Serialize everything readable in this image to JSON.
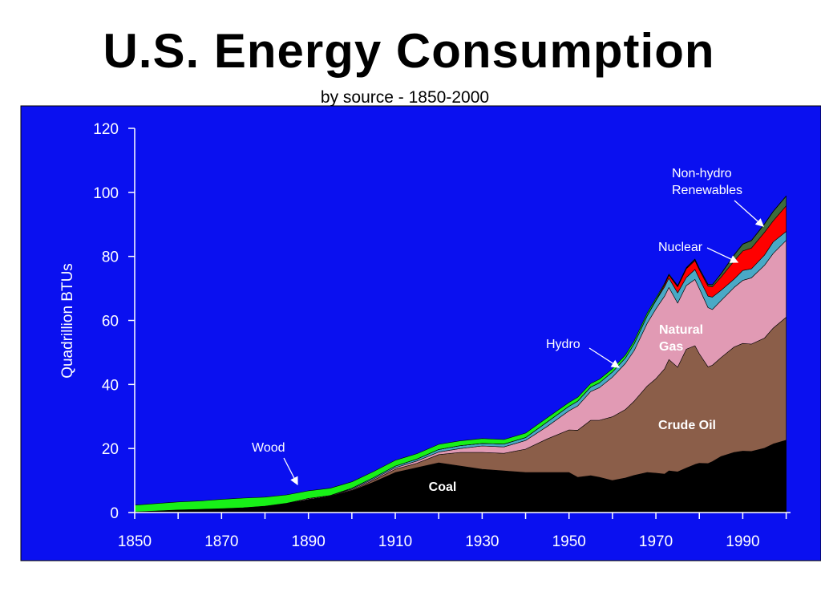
{
  "title": "U.S. Energy Consumption",
  "subtitle": "by source - 1850-2000",
  "colors": {
    "panel": "#0a10f0",
    "coal": "#000000",
    "crude_oil": "#8b5e49",
    "natural_gas": "#e19ab4",
    "hydro": "#49a9c6",
    "nuclear": "#ff0000",
    "renewables": "#3e6c3b",
    "wood": "#18f018"
  },
  "chart_data": {
    "type": "area",
    "stacked": true,
    "title": "U.S. Energy Consumption",
    "subtitle": "by source - 1850-2000",
    "xlabel": "",
    "ylabel": "Quadrillion BTUs",
    "xlim": [
      1850,
      2001
    ],
    "ylim": [
      0,
      120
    ],
    "x_ticks": [
      1850,
      1870,
      1890,
      1910,
      1930,
      1950,
      1970,
      1990
    ],
    "y_ticks": [
      0,
      20,
      40,
      60,
      80,
      100,
      120
    ],
    "grid": false,
    "legend": "inline labels",
    "x": [
      1850,
      1855,
      1860,
      1865,
      1870,
      1875,
      1880,
      1885,
      1890,
      1895,
      1900,
      1905,
      1910,
      1915,
      1920,
      1925,
      1930,
      1935,
      1940,
      1945,
      1950,
      1952,
      1955,
      1957,
      1960,
      1963,
      1965,
      1968,
      1970,
      1972,
      1973,
      1975,
      1977,
      1979,
      1980,
      1982,
      1983,
      1985,
      1988,
      1990,
      1992,
      1995,
      1997,
      2000
    ],
    "series": [
      {
        "name": "Coal",
        "color_key": "coal",
        "values": [
          0.2,
          0.5,
          0.8,
          1.0,
          1.2,
          1.5,
          2.0,
          2.8,
          4.0,
          5.0,
          6.8,
          9.5,
          12.5,
          14.0,
          15.5,
          14.5,
          13.5,
          13.0,
          12.5,
          12.5,
          12.5,
          11.0,
          11.5,
          11.0,
          10.0,
          10.8,
          11.6,
          12.5,
          12.3,
          12.0,
          13.0,
          12.7,
          13.9,
          15.0,
          15.4,
          15.3,
          15.9,
          17.5,
          18.8,
          19.2,
          19.1,
          20.1,
          21.4,
          22.6
        ]
      },
      {
        "name": "Crude Oil",
        "color_key": "crude_oil",
        "values": [
          0,
          0,
          0,
          0,
          0,
          0,
          0,
          0,
          0.1,
          0.1,
          0.2,
          0.6,
          1.0,
          1.4,
          2.6,
          4.3,
          5.3,
          5.5,
          7.3,
          10.5,
          13.3,
          14.7,
          17.3,
          17.8,
          19.9,
          21.4,
          23.2,
          27.0,
          29.5,
          32.9,
          34.8,
          32.7,
          37.1,
          37.1,
          34.2,
          30.2,
          30.1,
          30.9,
          32.9,
          33.6,
          33.5,
          34.4,
          36.2,
          38.4
        ]
      },
      {
        "name": "Natural Gas",
        "color_key": "natural_gas",
        "values": [
          0,
          0,
          0,
          0,
          0,
          0,
          0,
          0.1,
          0.3,
          0.2,
          0.3,
          0.4,
          0.5,
          0.7,
          0.8,
          1.2,
          2.0,
          2.0,
          2.7,
          3.9,
          6.0,
          7.6,
          9.0,
          10.2,
          12.4,
          14.4,
          15.8,
          19.6,
          21.8,
          22.7,
          22.5,
          20.0,
          19.9,
          20.7,
          20.4,
          18.5,
          17.4,
          17.8,
          18.6,
          19.7,
          20.7,
          22.7,
          23.3,
          24.0
        ]
      },
      {
        "name": "Hydro",
        "color_key": "hydro",
        "values": [
          0,
          0,
          0,
          0,
          0,
          0,
          0,
          0,
          0,
          0,
          0.3,
          0.4,
          0.5,
          0.6,
          0.8,
          0.9,
          0.8,
          0.9,
          0.9,
          1.4,
          1.4,
          1.5,
          1.4,
          1.5,
          1.6,
          1.7,
          2.1,
          2.3,
          2.6,
          2.9,
          2.9,
          3.2,
          2.5,
          3.1,
          3.1,
          3.6,
          3.9,
          3.2,
          2.6,
          3.1,
          2.8,
          3.2,
          3.6,
          2.8
        ]
      },
      {
        "name": "Nuclear",
        "color_key": "nuclear",
        "values": [
          0,
          0,
          0,
          0,
          0,
          0,
          0,
          0,
          0,
          0,
          0,
          0,
          0,
          0,
          0,
          0,
          0,
          0,
          0,
          0,
          0,
          0,
          0,
          0,
          0,
          0,
          0,
          0.1,
          0.2,
          0.6,
          0.9,
          1.9,
          2.7,
          2.8,
          2.7,
          3.1,
          3.2,
          4.1,
          5.7,
          6.1,
          6.5,
          7.1,
          6.6,
          8.0
        ]
      },
      {
        "name": "Non-hydro Renewables",
        "color_key": "renewables",
        "values": [
          0,
          0,
          0,
          0,
          0,
          0,
          0,
          0,
          0,
          0,
          0,
          0,
          0,
          0,
          0,
          0,
          0,
          0,
          0,
          0,
          0,
          0,
          0,
          0,
          0,
          0,
          0,
          0,
          0,
          0.1,
          0.1,
          0.2,
          0.2,
          0.3,
          0.4,
          0.5,
          0.6,
          1.0,
          1.8,
          2.1,
          2.3,
          2.6,
          2.9,
          3.0
        ]
      },
      {
        "name": "Wood",
        "color_key": "wood",
        "values": [
          2.1,
          2.3,
          2.5,
          2.6,
          2.9,
          3.0,
          2.8,
          2.6,
          2.4,
          2.3,
          2.0,
          1.9,
          1.8,
          1.7,
          1.6,
          1.5,
          1.5,
          1.4,
          1.4,
          1.3,
          1.2,
          1.2,
          1.1,
          1.1,
          1.0,
          0.9,
          0.9,
          0.8,
          0.6,
          0.4,
          0.3,
          0.2,
          0.2,
          0.2,
          0.1,
          0.1,
          0.1,
          0.1,
          0.1,
          0.1,
          0.1,
          0.1,
          0.1,
          0.1
        ]
      }
    ],
    "annotations": [
      {
        "series": "Coal",
        "text": "Coal",
        "year": 1850,
        "value": 8,
        "style": "inside"
      },
      {
        "series": "Crude Oil",
        "text": "Crude Oil",
        "year": 1850,
        "value": 26,
        "style": "inside"
      },
      {
        "series": "Natural Gas",
        "text": "Natural Gas",
        "year": 1850,
        "value": 57,
        "style": "inside"
      },
      {
        "series": "Hydro",
        "text": "Hydro",
        "year": 1850,
        "value": 50,
        "style": "arrow"
      },
      {
        "series": "Nuclear",
        "text": "Nuclear",
        "year": 1850,
        "value": 82,
        "style": "arrow"
      },
      {
        "series": "Non-hydro Renewables",
        "text": "Non-hydro Renewables",
        "year": 1850,
        "value": 100,
        "style": "arrow"
      },
      {
        "series": "Wood",
        "text": "Wood",
        "year": 1850,
        "value": 19,
        "style": "arrow"
      }
    ]
  }
}
